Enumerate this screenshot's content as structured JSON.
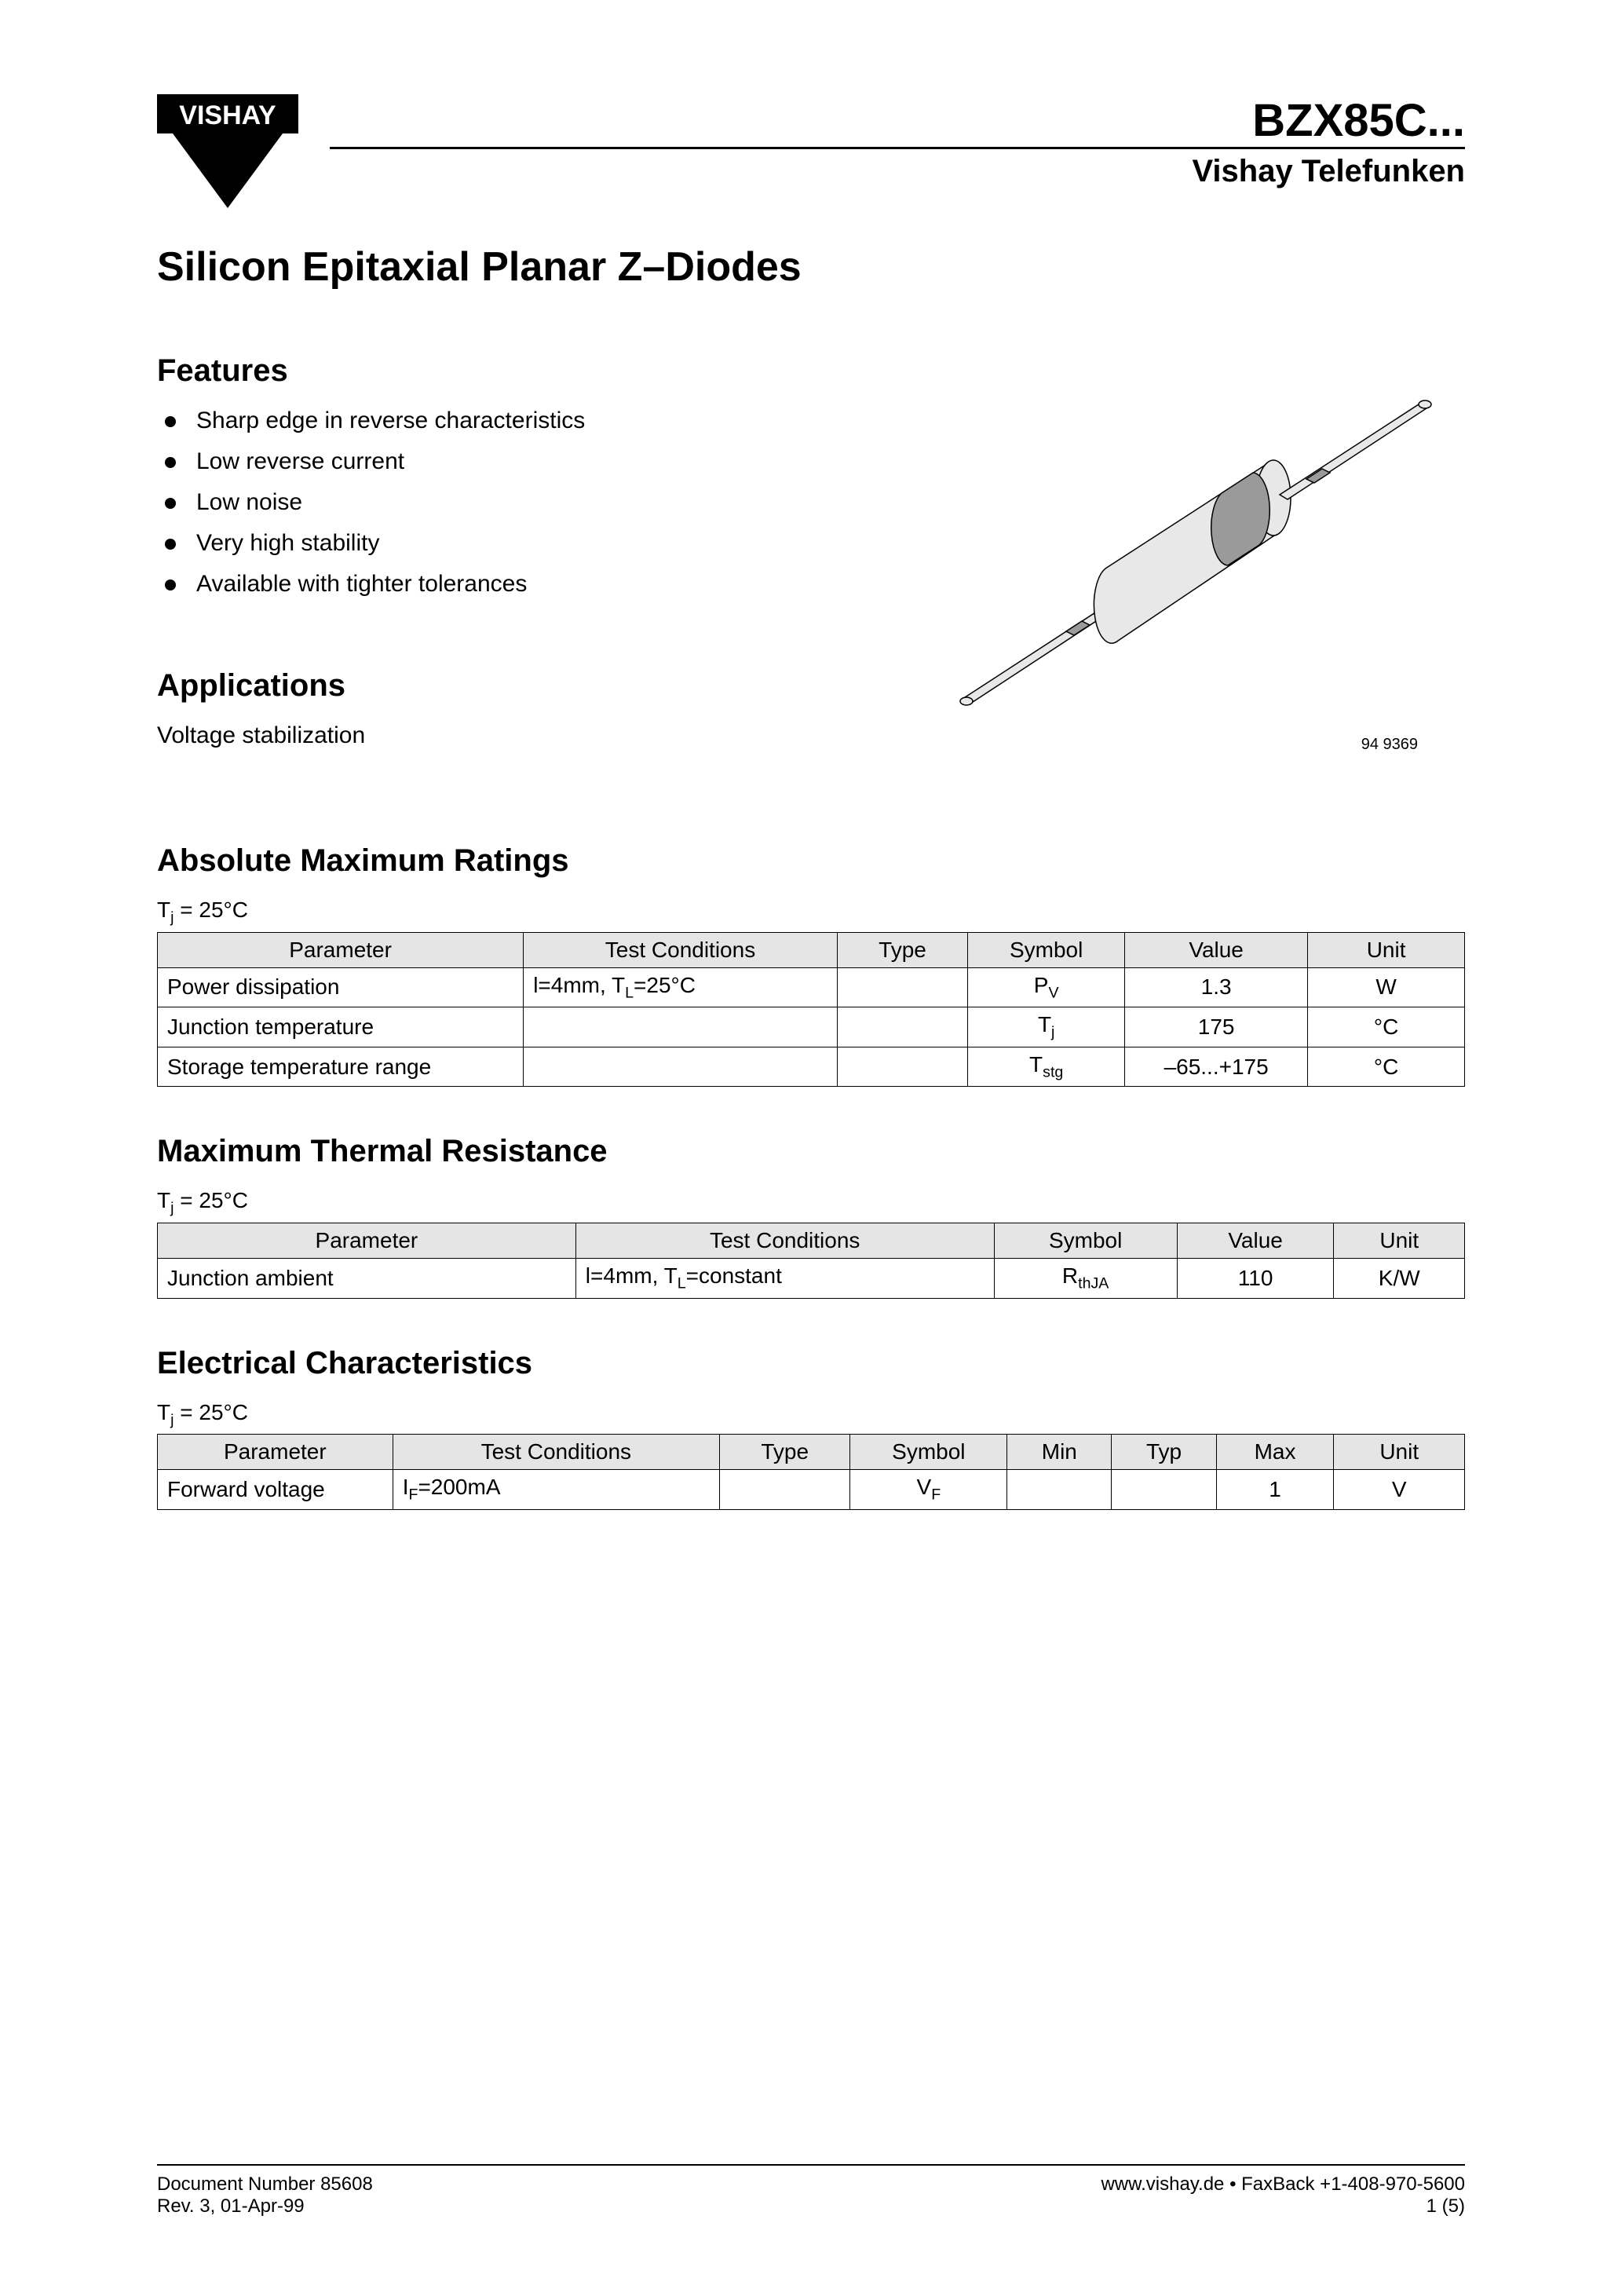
{
  "header": {
    "logo_text": "VISHAY",
    "part_number": "BZX85C...",
    "manufacturer": "Vishay Telefunken"
  },
  "main_title": "Silicon Epitaxial Planar Z–Diodes",
  "features": {
    "heading": "Features",
    "items": [
      "Sharp edge in reverse characteristics",
      "Low reverse current",
      "Low noise",
      "Very high stability",
      "Available with tighter tolerances"
    ]
  },
  "figure": {
    "caption": "94 9369",
    "body_fill": "#e8e8e8",
    "band_fill": "#9a9a9a",
    "stroke": "#000000"
  },
  "applications": {
    "heading": "Applications",
    "text": "Voltage stabilization"
  },
  "abs_max": {
    "heading": "Absolute Maximum Ratings",
    "condition": "Tj = 25°C",
    "columns": [
      "Parameter",
      "Test Conditions",
      "Type",
      "Symbol",
      "Value",
      "Unit"
    ],
    "rows": [
      {
        "parameter": "Power dissipation",
        "test": "l=4mm, TL=25°C",
        "type": "",
        "symbol": "P",
        "symbol_sub": "V",
        "value": "1.3",
        "unit": "W"
      },
      {
        "parameter": "Junction temperature",
        "test": "",
        "type": "",
        "symbol": "T",
        "symbol_sub": "j",
        "value": "175",
        "unit": "°C"
      },
      {
        "parameter": "Storage temperature range",
        "test": "",
        "type": "",
        "symbol": "T",
        "symbol_sub": "stg",
        "value": "–65...+175",
        "unit": "°C"
      }
    ]
  },
  "thermal": {
    "heading": "Maximum Thermal Resistance",
    "condition": "Tj = 25°C",
    "columns": [
      "Parameter",
      "Test Conditions",
      "Symbol",
      "Value",
      "Unit"
    ],
    "rows": [
      {
        "parameter": "Junction ambient",
        "test": "l=4mm, TL=constant",
        "symbol": "R",
        "symbol_sub": "thJA",
        "value": "110",
        "unit": "K/W"
      }
    ]
  },
  "electrical": {
    "heading": "Electrical Characteristics",
    "condition": "Tj = 25°C",
    "columns": [
      "Parameter",
      "Test Conditions",
      "Type",
      "Symbol",
      "Min",
      "Typ",
      "Max",
      "Unit"
    ],
    "rows": [
      {
        "parameter": "Forward voltage",
        "test": "IF=200mA",
        "type": "",
        "symbol": "V",
        "symbol_sub": "F",
        "min": "",
        "typ": "",
        "max": "1",
        "unit": "V"
      }
    ]
  },
  "footer": {
    "doc_number": "Document Number 85608",
    "revision": "Rev. 3, 01-Apr-99",
    "website": "www.vishay.de • FaxBack +1-408-970-5600",
    "page": "1 (5)"
  }
}
